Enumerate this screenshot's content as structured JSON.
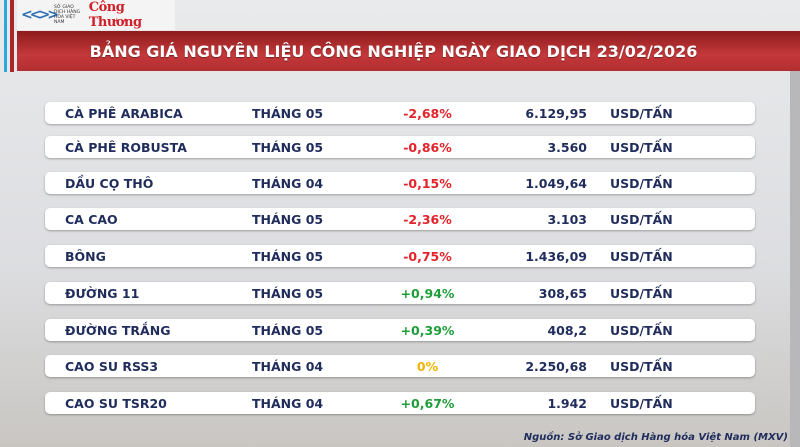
{
  "header": {
    "logo_org": "SỞ GIAO DỊCH HÀNG HÓA VIỆT NAM",
    "logo_brand": "Công Thương",
    "title": "BẢNG GIÁ NGUYÊN LIỆU CÔNG NGHIỆP NGÀY GIAO DỊCH 23/02/2026"
  },
  "colors": {
    "negative": "#e3222a",
    "positive": "#1e9e3a",
    "neutral": "#f0b400",
    "text": "#1f2c5c",
    "banner": "#b22e30"
  },
  "rows": [
    {
      "name": "CÀ PHÊ ARABICA",
      "month": "THÁNG 05",
      "change": "-2,68%",
      "trend": "negative",
      "price": "6.129,95",
      "unit": "USD/TẤN"
    },
    {
      "name": "CÀ PHÊ ROBUSTA",
      "month": "THÁNG 05",
      "change": "-0,86%",
      "trend": "negative",
      "price": "3.560",
      "unit": "USD/TẤN"
    },
    {
      "name": "DẦU CỌ THÔ",
      "month": "THÁNG 04",
      "change": "-0,15%",
      "trend": "negative",
      "price": "1.049,64",
      "unit": "USD/TẤN"
    },
    {
      "name": "CA CAO",
      "month": "THÁNG 05",
      "change": "-2,36%",
      "trend": "negative",
      "price": "3.103",
      "unit": "USD/TẤN"
    },
    {
      "name": "BÔNG",
      "month": "THÁNG 05",
      "change": "-0,75%",
      "trend": "negative",
      "price": "1.436,09",
      "unit": "USD/TẤN"
    },
    {
      "name": "ĐƯỜNG 11",
      "month": "THÁNG 05",
      "change": "+0,94%",
      "trend": "positive",
      "price": "308,65",
      "unit": "USD/TẤN"
    },
    {
      "name": "ĐƯỜNG TRẮNG",
      "month": "THÁNG 05",
      "change": "+0,39%",
      "trend": "positive",
      "price": "408,2",
      "unit": "USD/TẤN"
    },
    {
      "name": "CAO SU RSS3",
      "month": "THÁNG 04",
      "change": "0%",
      "trend": "neutral",
      "price": "2.250,68",
      "unit": "USD/TẤN"
    },
    {
      "name": "CAO SU TSR20",
      "month": "THÁNG 04",
      "change": "+0,67%",
      "trend": "positive",
      "price": "1.942",
      "unit": "USD/TẤN"
    }
  ],
  "footer": {
    "source": "Nguồn: Sở Giao dịch Hàng hóa Việt Nam (MXV)"
  }
}
